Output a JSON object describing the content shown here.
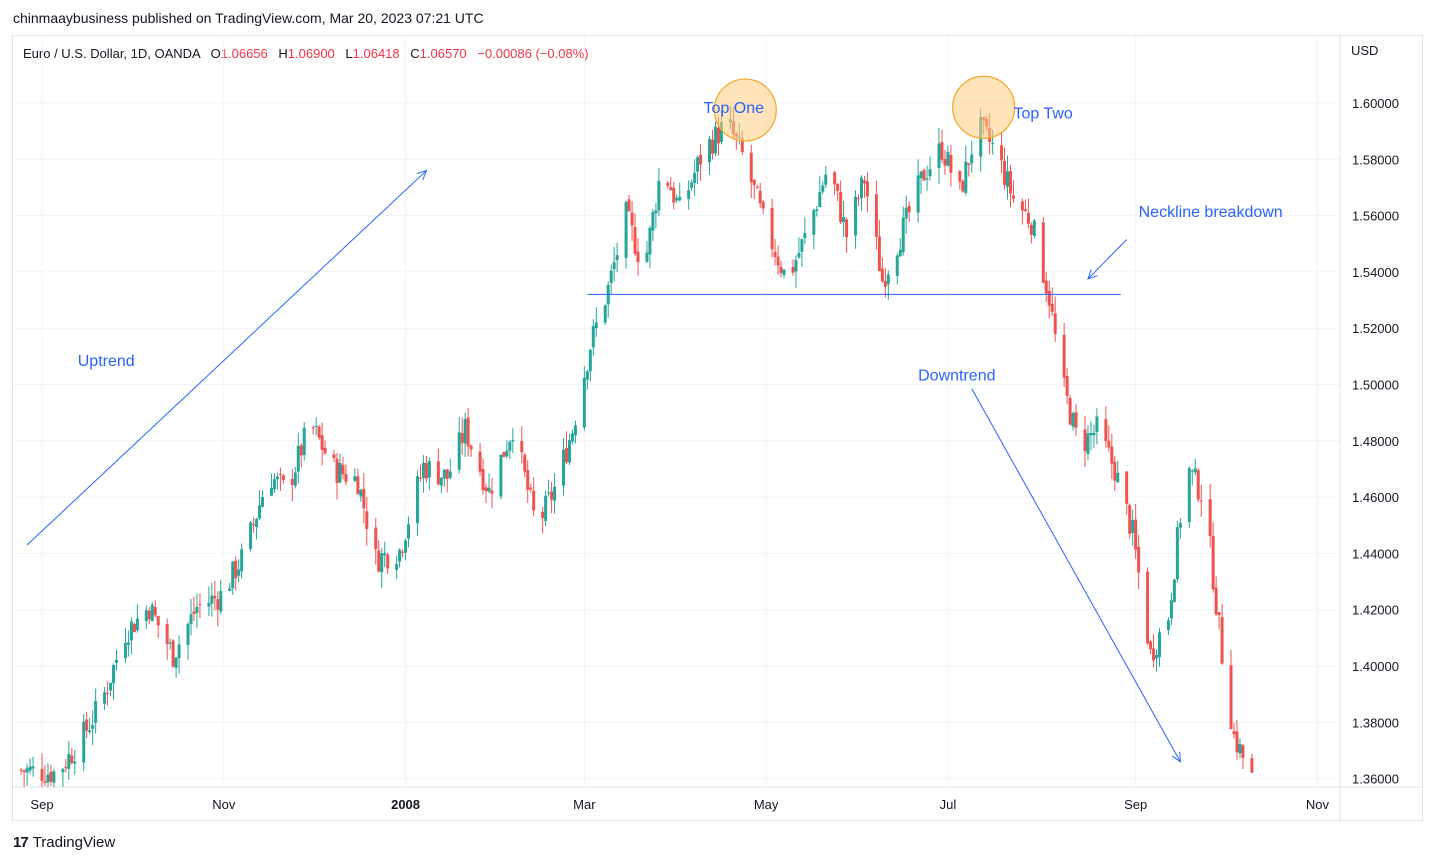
{
  "header": {
    "published": "chinmaaybusiness published on TradingView.com, Mar 20, 2023 07:21 UTC"
  },
  "legend": {
    "symbol": "Euro / U.S. Dollar, 1D, OANDA",
    "o_label": "O",
    "o_value": "1.06656",
    "h_label": "H",
    "h_value": "1.06900",
    "l_label": "L",
    "l_value": "1.06418",
    "c_label": "C",
    "c_value": "1.06570",
    "change": "−0.00086 (−0.08%)"
  },
  "footer": {
    "logo_glyph": "17",
    "brand": "TradingView"
  },
  "colors": {
    "up": "#26a69a",
    "down": "#ef5350",
    "annotation": "#2962ff",
    "highlight": "#ffcc80"
  },
  "chart_data": {
    "type": "candlestick",
    "currency_label": "USD",
    "y_axis_ticks": [
      "1.60000",
      "1.58000",
      "1.56000",
      "1.54000",
      "1.52000",
      "1.50000",
      "1.48000",
      "1.46000",
      "1.44000",
      "1.42000",
      "1.40000",
      "1.38000",
      "1.36000"
    ],
    "ylim": [
      1.355,
      1.625
    ],
    "x_axis_labels": [
      {
        "label": "Sep",
        "day": 0,
        "bold": false
      },
      {
        "label": "Nov",
        "day": 61,
        "bold": false
      },
      {
        "label": "2008",
        "day": 122,
        "bold": true
      },
      {
        "label": "Mar",
        "day": 182,
        "bold": false
      },
      {
        "label": "May",
        "day": 243,
        "bold": false
      },
      {
        "label": "Jul",
        "day": 304,
        "bold": false
      },
      {
        "label": "Sep",
        "day": 367,
        "bold": false
      },
      {
        "label": "Nov",
        "day": 428,
        "bold": false
      }
    ],
    "price_path": [
      {
        "day": -8,
        "price": 1.363
      },
      {
        "day": 5,
        "price": 1.362
      },
      {
        "day": 12,
        "price": 1.372
      },
      {
        "day": 20,
        "price": 1.387
      },
      {
        "day": 28,
        "price": 1.412
      },
      {
        "day": 36,
        "price": 1.421
      },
      {
        "day": 44,
        "price": 1.404
      },
      {
        "day": 52,
        "price": 1.421
      },
      {
        "day": 60,
        "price": 1.425
      },
      {
        "day": 68,
        "price": 1.44
      },
      {
        "day": 76,
        "price": 1.468
      },
      {
        "day": 82,
        "price": 1.462
      },
      {
        "day": 90,
        "price": 1.486
      },
      {
        "day": 98,
        "price": 1.47
      },
      {
        "day": 106,
        "price": 1.466
      },
      {
        "day": 112,
        "price": 1.438
      },
      {
        "day": 120,
        "price": 1.441
      },
      {
        "day": 128,
        "price": 1.471
      },
      {
        "day": 136,
        "price": 1.467
      },
      {
        "day": 142,
        "price": 1.484
      },
      {
        "day": 150,
        "price": 1.462
      },
      {
        "day": 158,
        "price": 1.485
      },
      {
        "day": 166,
        "price": 1.449
      },
      {
        "day": 172,
        "price": 1.463
      },
      {
        "day": 178,
        "price": 1.484
      },
      {
        "day": 184,
        "price": 1.514
      },
      {
        "day": 190,
        "price": 1.534
      },
      {
        "day": 196,
        "price": 1.56
      },
      {
        "day": 202,
        "price": 1.541
      },
      {
        "day": 208,
        "price": 1.578
      },
      {
        "day": 214,
        "price": 1.562
      },
      {
        "day": 222,
        "price": 1.583
      },
      {
        "day": 230,
        "price": 1.593
      },
      {
        "day": 236,
        "price": 1.579
      },
      {
        "day": 242,
        "price": 1.558
      },
      {
        "day": 250,
        "price": 1.537
      },
      {
        "day": 256,
        "price": 1.552
      },
      {
        "day": 264,
        "price": 1.578
      },
      {
        "day": 270,
        "price": 1.553
      },
      {
        "day": 276,
        "price": 1.573
      },
      {
        "day": 282,
        "price": 1.537
      },
      {
        "day": 290,
        "price": 1.558
      },
      {
        "day": 296,
        "price": 1.575
      },
      {
        "day": 302,
        "price": 1.584
      },
      {
        "day": 308,
        "price": 1.568
      },
      {
        "day": 314,
        "price": 1.592
      },
      {
        "day": 320,
        "price": 1.583
      },
      {
        "day": 326,
        "price": 1.566
      },
      {
        "day": 332,
        "price": 1.558
      },
      {
        "day": 338,
        "price": 1.531
      },
      {
        "day": 342,
        "price": 1.502
      },
      {
        "day": 348,
        "price": 1.478
      },
      {
        "day": 354,
        "price": 1.484
      },
      {
        "day": 360,
        "price": 1.47
      },
      {
        "day": 366,
        "price": 1.447
      },
      {
        "day": 372,
        "price": 1.404
      },
      {
        "day": 378,
        "price": 1.418
      },
      {
        "day": 384,
        "price": 1.471
      },
      {
        "day": 390,
        "price": 1.46
      },
      {
        "day": 396,
        "price": 1.404
      },
      {
        "day": 400,
        "price": 1.375
      },
      {
        "day": 406,
        "price": 1.36
      }
    ],
    "annotations": [
      {
        "text": "Top One",
        "day": 222,
        "price": 1.5965
      },
      {
        "text": "Top Two",
        "day": 326,
        "price": 1.5945
      },
      {
        "text": "Neckline breakdown",
        "day": 368,
        "price": 1.5595
      },
      {
        "text": "Uptrend",
        "day": 12,
        "price": 1.5065
      },
      {
        "text": "Downtrend",
        "day": 294,
        "price": 1.5015
      }
    ],
    "trendlines": [
      {
        "name": "uptrend-arrow",
        "from": {
          "day": -5,
          "price": 1.443
        },
        "to": {
          "day": 129,
          "price": 1.576
        },
        "arrow": true
      },
      {
        "name": "downtrend-arrow",
        "from": {
          "day": 312,
          "price": 1.4985
        },
        "to": {
          "day": 382,
          "price": 1.366
        },
        "arrow": true
      },
      {
        "name": "neckline",
        "from": {
          "day": 183,
          "price": 1.532
        },
        "to": {
          "day": 362,
          "price": 1.532
        },
        "arrow": false
      },
      {
        "name": "neckline-pointer-arrow",
        "from": {
          "day": 364,
          "price": 1.5515
        },
        "to": {
          "day": 351,
          "price": 1.5375
        },
        "arrow": true
      }
    ],
    "highlights": [
      {
        "name": "top-one-circle",
        "day": 236,
        "price": 1.5975
      },
      {
        "name": "top-two-circle",
        "day": 316,
        "price": 1.5985
      }
    ],
    "grid": "on",
    "legend": "top-left"
  }
}
